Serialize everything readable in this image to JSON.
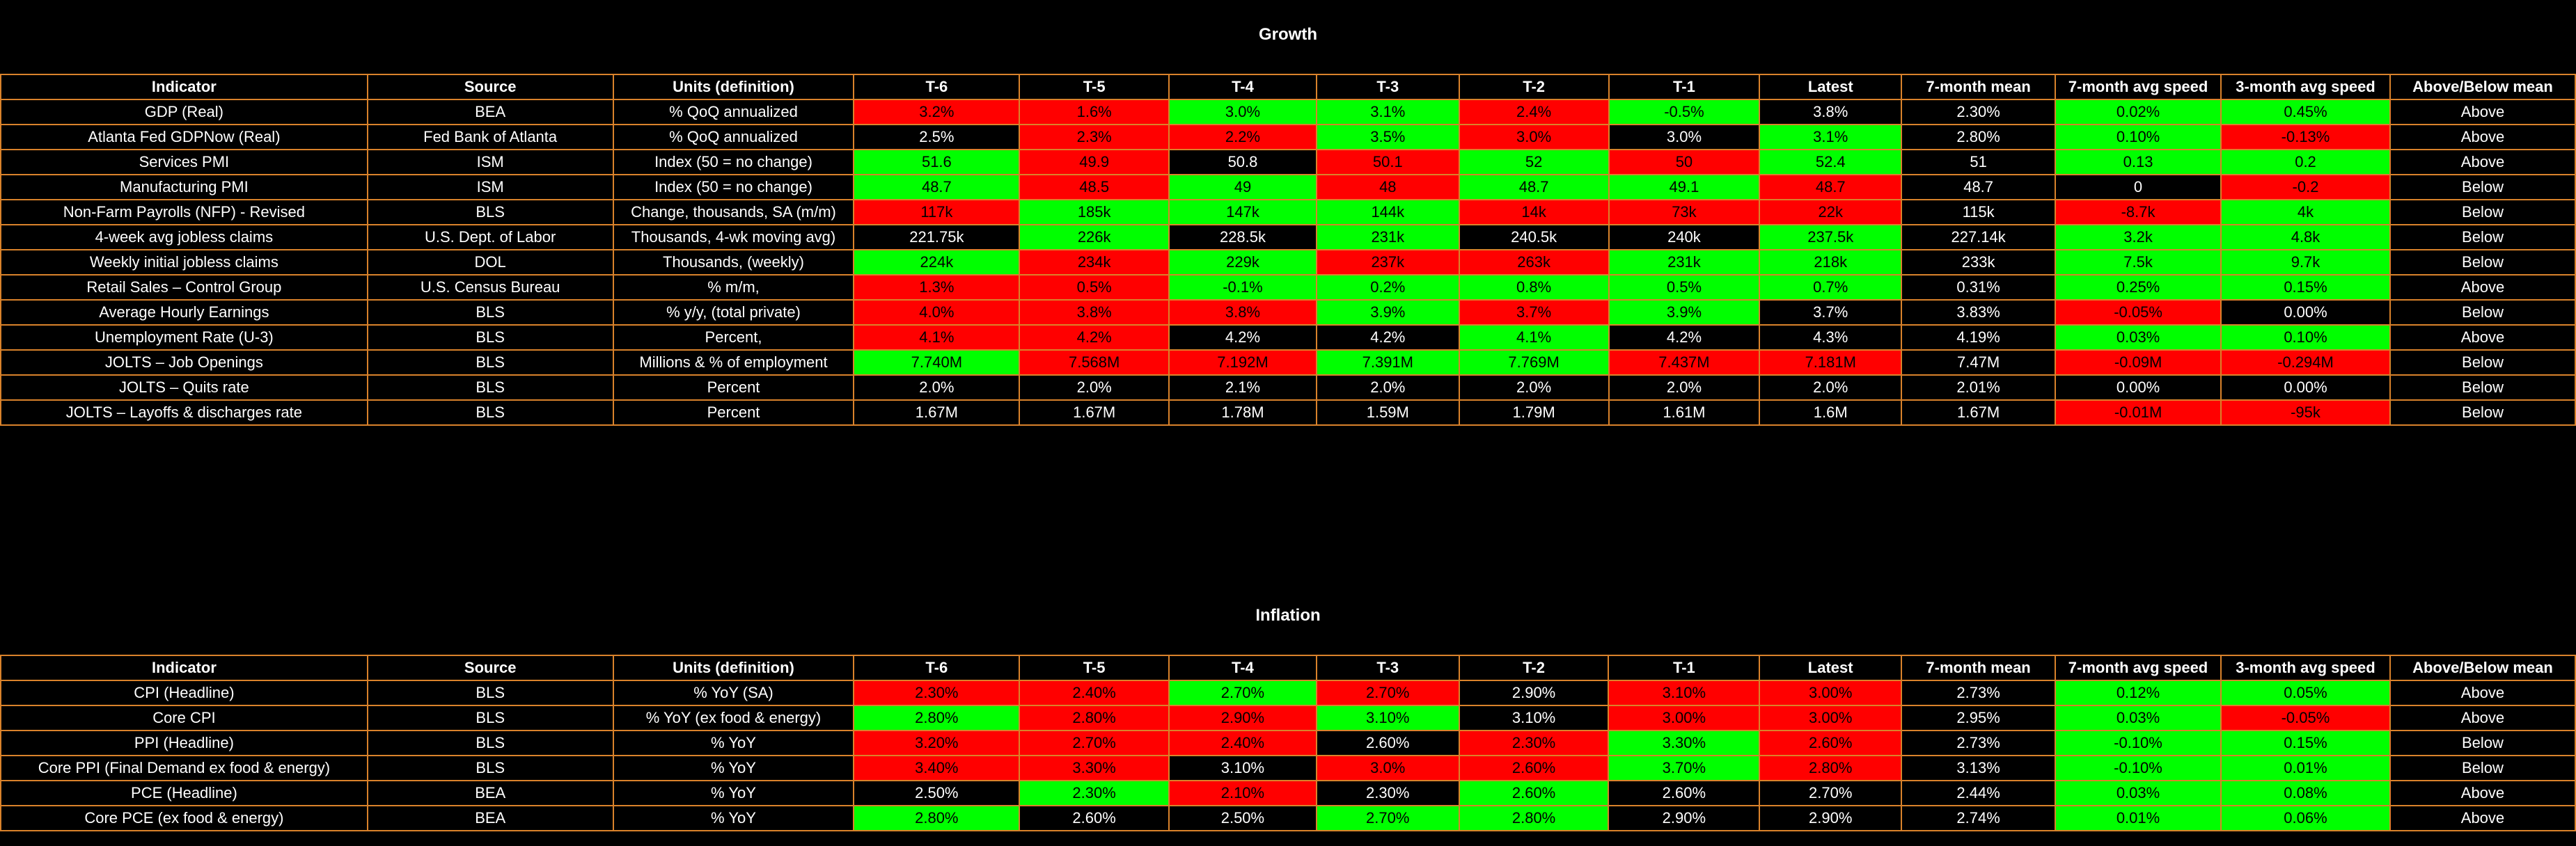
{
  "columns": [
    "Indicator",
    "Source",
    "Units (definition)",
    "T-6",
    "T-5",
    "T-4",
    "T-3",
    "T-2",
    "T-1",
    "Latest",
    "7-month mean",
    "7-month avg speed",
    "3-month avg speed",
    "Above/Below mean"
  ],
  "colors": {
    "up": "#00ff00",
    "down": "#ff0000",
    "neutral": "#000000",
    "border": "#d9822b"
  },
  "sections": [
    {
      "title": "Growth",
      "rows": [
        {
          "cells": [
            "GDP (Real)",
            "BEA",
            "% QoQ annualized",
            "3.2%",
            "1.6%",
            "3.0%",
            "3.1%",
            "2.4%",
            "-0.5%",
            "3.8%",
            "2.30%",
            "0.02%",
            "0.45%",
            "Above"
          ],
          "status": [
            "d",
            "d",
            "u",
            "u",
            "d",
            "u",
            "n",
            "u",
            "u"
          ]
        },
        {
          "cells": [
            "Atlanta Fed GDPNow (Real)",
            "Fed Bank of Atlanta",
            "% QoQ annualized",
            "2.5%",
            "2.3%",
            "2.2%",
            "3.5%",
            "3.0%",
            "3.0%",
            "3.1%",
            "2.80%",
            "0.10%",
            "-0.13%",
            "Above"
          ],
          "status": [
            "n",
            "d",
            "d",
            "u",
            "d",
            "n",
            "u",
            "u",
            "d"
          ]
        },
        {
          "cells": [
            "Services PMI",
            "ISM",
            "Index (50 = no change)",
            "51.6",
            "49.9",
            "50.8",
            "50.1",
            "52",
            "50",
            "52.4",
            "51",
            "0.13",
            "0.2",
            "Above"
          ],
          "status": [
            "u",
            "d",
            "n",
            "d",
            "u",
            "d",
            "u",
            "u",
            "u"
          ]
        },
        {
          "cells": [
            "Manufacturing PMI",
            "ISM",
            "Index (50 = no change)",
            "48.7",
            "48.5",
            "49",
            "48",
            "48.7",
            "49.1",
            "48.7",
            "48.7",
            "0",
            "-0.2",
            "Below"
          ],
          "status": [
            "u",
            "d",
            "u",
            "d",
            "u",
            "u",
            "d",
            "n",
            "d"
          ]
        },
        {
          "cells": [
            "Non-Farm Payrolls (NFP) - Revised",
            "BLS",
            "Change, thousands, SA (m/m)",
            "117k",
            "185k",
            "147k",
            "144k",
            "14k",
            "73k",
            "22k",
            "115k",
            "-8.7k",
            "4k",
            "Below"
          ],
          "status": [
            "d",
            "u",
            "u",
            "u",
            "d",
            "d",
            "d",
            "d",
            "u"
          ]
        },
        {
          "cells": [
            "4-week avg jobless claims",
            "U.S. Dept. of Labor",
            "Thousands, 4-wk moving avg)",
            "221.75k",
            "226k",
            "228.5k",
            "231k",
            "240.5k",
            "240k",
            "237.5k",
            "227.14k",
            "3.2k",
            "4.8k",
            "Below"
          ],
          "status": [
            "n",
            "u",
            "n",
            "u",
            "n",
            "n",
            "u",
            "u",
            "u"
          ]
        },
        {
          "cells": [
            "Weekly initial jobless claims",
            "DOL",
            "Thousands, (weekly)",
            "224k",
            "234k",
            "229k",
            "237k",
            "263k",
            "231k",
            "218k",
            "233k",
            "7.5k",
            "9.7k",
            "Below"
          ],
          "status": [
            "u",
            "d",
            "u",
            "d",
            "d",
            "u",
            "u",
            "u",
            "u"
          ]
        },
        {
          "cells": [
            "Retail Sales – Control Group",
            "U.S. Census Bureau",
            "% m/m,",
            "1.3%",
            "0.5%",
            "-0.1%",
            "0.2%",
            "0.8%",
            "0.5%",
            "0.7%",
            "0.31%",
            "0.25%",
            "0.15%",
            "Above"
          ],
          "status": [
            "d",
            "d",
            "u",
            "u",
            "u",
            "u",
            "u",
            "u",
            "u"
          ]
        },
        {
          "cells": [
            "Average Hourly Earnings",
            "BLS",
            "% y/y, (total private)",
            "4.0%",
            "3.8%",
            "3.8%",
            "3.9%",
            "3.7%",
            "3.9%",
            "3.7%",
            "3.83%",
            "-0.05%",
            "0.00%",
            "Below"
          ],
          "status": [
            "d",
            "d",
            "d",
            "u",
            "d",
            "u",
            "n",
            "d",
            "n"
          ]
        },
        {
          "cells": [
            "Unemployment Rate (U-3)",
            "BLS",
            "Percent,",
            "4.1%",
            "4.2%",
            "4.2%",
            "4.2%",
            "4.1%",
            "4.2%",
            "4.3%",
            "4.19%",
            "0.03%",
            "0.10%",
            "Above"
          ],
          "status": [
            "d",
            "d",
            "n",
            "n",
            "u",
            "n",
            "n",
            "u",
            "u"
          ]
        },
        {
          "cells": [
            "JOLTS – Job Openings",
            "BLS",
            "Millions & % of employment",
            "7.740M",
            "7.568M",
            "7.192M",
            "7.391M",
            "7.769M",
            "7.437M",
            "7.181M",
            "7.47M",
            "-0.09M",
            "-0.294M",
            "Below"
          ],
          "status": [
            "u",
            "d",
            "d",
            "u",
            "u",
            "d",
            "d",
            "d",
            "d"
          ]
        },
        {
          "cells": [
            "JOLTS – Quits rate",
            "BLS",
            "Percent",
            "2.0%",
            "2.0%",
            "2.1%",
            "2.0%",
            "2.0%",
            "2.0%",
            "2.0%",
            "2.01%",
            "0.00%",
            "0.00%",
            "Below"
          ],
          "status": [
            "n",
            "n",
            "n",
            "n",
            "n",
            "n",
            "n",
            "n",
            "n"
          ]
        },
        {
          "cells": [
            "JOLTS – Layoffs & discharges rate",
            "BLS",
            "Percent",
            "1.67M",
            "1.67M",
            "1.78M",
            "1.59M",
            "1.79M",
            "1.61M",
            "1.6M",
            "1.67M",
            "-0.01M",
            "-95k",
            "Below"
          ],
          "status": [
            "n",
            "n",
            "n",
            "n",
            "n",
            "n",
            "n",
            "d",
            "d"
          ]
        }
      ]
    },
    {
      "title": "Inflation",
      "rows": [
        {
          "cells": [
            "CPI (Headline)",
            "BLS",
            "% YoY (SA)",
            "2.30%",
            "2.40%",
            "2.70%",
            "2.70%",
            "2.90%",
            "3.10%",
            "3.00%",
            "2.73%",
            "0.12%",
            "0.05%",
            "Above"
          ],
          "status": [
            "d",
            "d",
            "u",
            "d",
            "n",
            "d",
            "d",
            "u",
            "u"
          ]
        },
        {
          "cells": [
            "Core CPI",
            "BLS",
            "% YoY (ex food & energy)",
            "2.80%",
            "2.80%",
            "2.90%",
            "3.10%",
            "3.10%",
            "3.00%",
            "3.00%",
            "2.95%",
            "0.03%",
            "-0.05%",
            "Above"
          ],
          "status": [
            "u",
            "d",
            "d",
            "u",
            "n",
            "d",
            "d",
            "u",
            "d"
          ]
        },
        {
          "cells": [
            "PPI (Headline)",
            "BLS",
            "% YoY",
            "3.20%",
            "2.70%",
            "2.40%",
            "2.60%",
            "2.30%",
            "3.30%",
            "2.60%",
            "2.73%",
            "-0.10%",
            "0.15%",
            "Below"
          ],
          "status": [
            "d",
            "d",
            "d",
            "n",
            "d",
            "u",
            "d",
            "u",
            "u"
          ]
        },
        {
          "cells": [
            "Core PPI (Final Demand ex food & energy)",
            "BLS",
            "% YoY",
            "3.40%",
            "3.30%",
            "3.10%",
            "3.0%",
            "2.60%",
            "3.70%",
            "2.80%",
            "3.13%",
            "-0.10%",
            "0.01%",
            "Below"
          ],
          "status": [
            "d",
            "d",
            "n",
            "d",
            "d",
            "u",
            "d",
            "u",
            "u"
          ]
        },
        {
          "cells": [
            "PCE (Headline)",
            "BEA",
            "% YoY",
            "2.50%",
            "2.30%",
            "2.10%",
            "2.30%",
            "2.60%",
            "2.60%",
            "2.70%",
            "2.44%",
            "0.03%",
            "0.08%",
            "Above"
          ],
          "status": [
            "n",
            "u",
            "d",
            "n",
            "u",
            "n",
            "n",
            "u",
            "u"
          ]
        },
        {
          "cells": [
            "Core PCE (ex food & energy)",
            "BEA",
            "% YoY",
            "2.80%",
            "2.60%",
            "2.50%",
            "2.70%",
            "2.80%",
            "2.90%",
            "2.90%",
            "2.74%",
            "0.01%",
            "0.06%",
            "Above"
          ],
          "status": [
            "u",
            "n",
            "n",
            "u",
            "u",
            "n",
            "n",
            "u",
            "u"
          ]
        }
      ]
    }
  ]
}
